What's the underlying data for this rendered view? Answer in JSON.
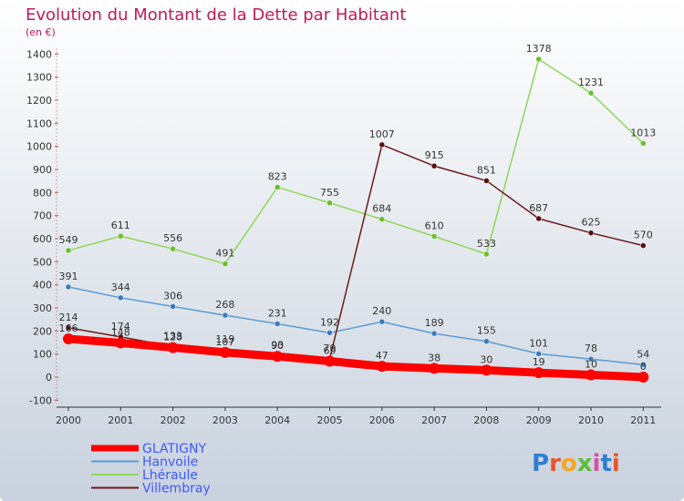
{
  "chart_data": {
    "type": "line",
    "title": "Evolution du Montant de la Dette par Habitant",
    "subtitle": "(en €)",
    "x": [
      "2000",
      "2001",
      "2002",
      "2003",
      "2004",
      "2005",
      "2006",
      "2007",
      "2008",
      "2009",
      "2010",
      "2011"
    ],
    "ylim": [
      -100,
      1400
    ],
    "yticks": [
      -100,
      0,
      100,
      200,
      300,
      400,
      500,
      600,
      700,
      800,
      900,
      1000,
      1100,
      1200,
      1300,
      1400
    ],
    "grid": false,
    "legend": "bottom-left",
    "series": [
      {
        "name": "GLATIGNY",
        "color": "#ff0000",
        "values": [
          166,
          148,
          128,
          107,
          90,
          69,
          47,
          38,
          30,
          19,
          10,
          0
        ]
      },
      {
        "name": "Hanvoile",
        "color": "#5b9bd5",
        "values": [
          391,
          344,
          306,
          268,
          231,
          192,
          240,
          189,
          155,
          101,
          78,
          54
        ]
      },
      {
        "name": "Lhéraule",
        "color": "#8fd65a",
        "values": [
          549,
          611,
          556,
          491,
          823,
          755,
          684,
          610,
          533,
          1378,
          1231,
          1013
        ]
      },
      {
        "name": "Villembray",
        "color": "#6b1a1a",
        "values": [
          214,
          174,
          133,
          119,
          93,
          79,
          1007,
          915,
          851,
          687,
          625,
          570
        ]
      }
    ]
  },
  "brand": {
    "text": "Proxiti"
  }
}
